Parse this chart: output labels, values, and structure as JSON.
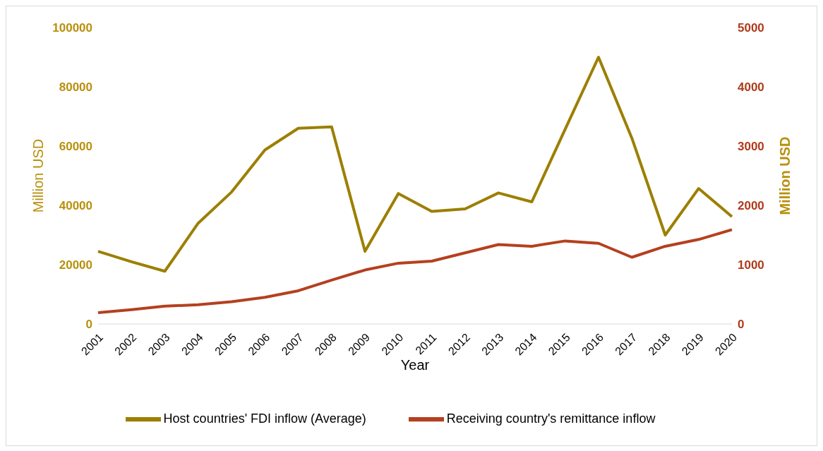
{
  "chart_data": {
    "type": "line",
    "xlabel": "Year",
    "ylabel": "Million USD",
    "y2label": "Million USD",
    "categories": [
      "2001",
      "2002",
      "2003",
      "2004",
      "2005",
      "2006",
      "2007",
      "2008",
      "2009",
      "2010",
      "2011",
      "2012",
      "2013",
      "2014",
      "2015",
      "2016",
      "2017",
      "2018",
      "2019",
      "2020"
    ],
    "series": [
      {
        "name": "Host countries' FDI inflow (Average)",
        "color": "#9c7f00",
        "values": [
          24500,
          21000,
          17800,
          34000,
          44500,
          58700,
          66000,
          66500,
          24500,
          44000,
          38000,
          38800,
          44200,
          41200,
          65700,
          90000,
          62700,
          30000,
          45700,
          36200
        ]
      },
      {
        "name": "Receiving country's remittance inflow",
        "color": "#b5401f",
        "axis": "y2",
        "values": [
          190,
          240,
          300,
          325,
          375,
          450,
          560,
          740,
          910,
          1025,
          1060,
          1200,
          1340,
          1310,
          1400,
          1360,
          1125,
          1310,
          1425,
          1590
        ]
      }
    ],
    "ylim": [
      0,
      100000
    ],
    "yticks": [
      0,
      20000,
      40000,
      60000,
      80000,
      100000
    ],
    "y2lim": [
      0,
      5000
    ],
    "y2ticks": [
      0,
      1000,
      2000,
      3000,
      4000,
      5000
    ],
    "grid": false,
    "legend": "bottom",
    "marker": "none",
    "line_style": "solid"
  }
}
